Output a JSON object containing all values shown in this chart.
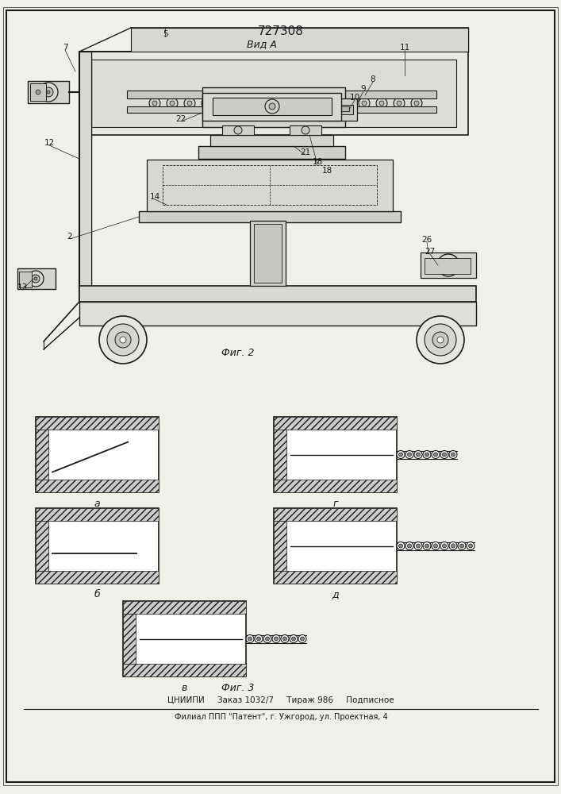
{
  "title": "727308",
  "view_label": "Вид А",
  "fig2_label": "Фиг. 2",
  "fig3_label": "Фиг. 3",
  "bottom_text1": "ЦНИИПИ     Заказ 1032/7     Тираж 986     Подписное",
  "bottom_text2": "Филиал ППП \"Патент\", г. Ужгород, ул. Проектная, 4",
  "bg_color": "#f0f0eb",
  "line_color": "#1a1a1a"
}
